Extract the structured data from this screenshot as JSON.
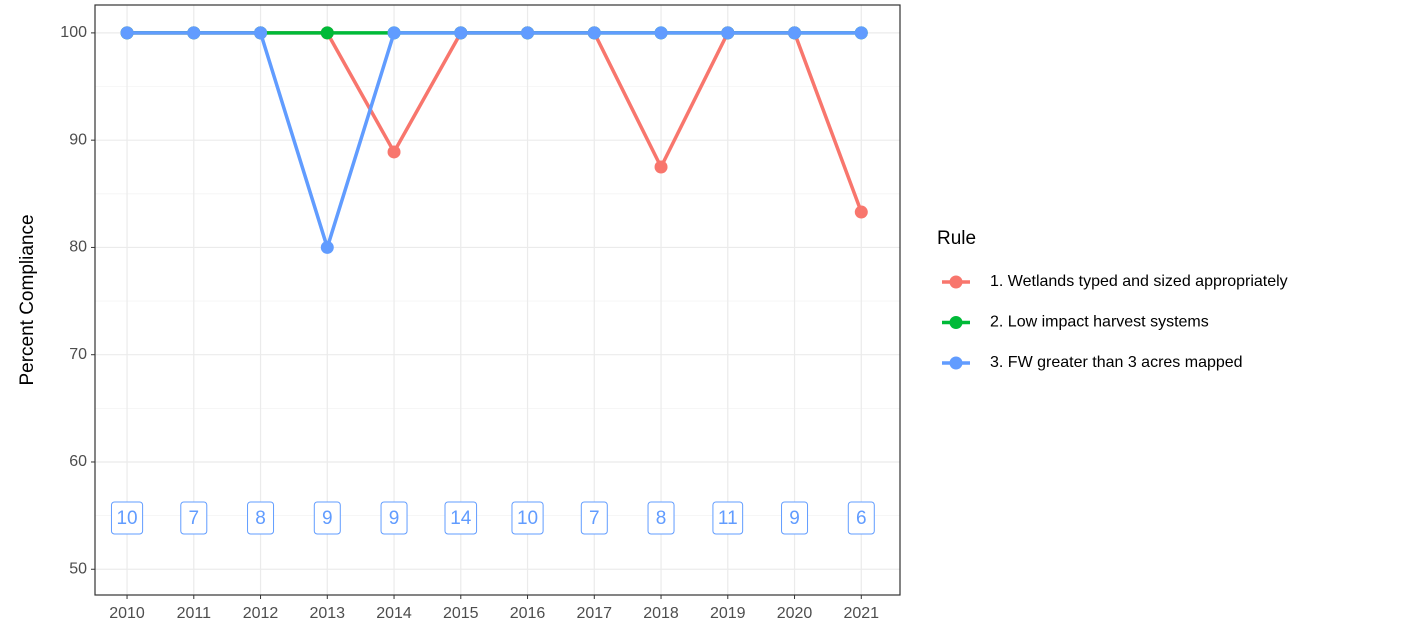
{
  "chart_data": {
    "type": "line",
    "y_label": "Percent Compliance",
    "x": [
      2010,
      2011,
      2012,
      2013,
      2014,
      2015,
      2016,
      2017,
      2018,
      2019,
      2020,
      2021
    ],
    "series": [
      {
        "name": "1. Wetlands typed and sized appropriately",
        "color": "#F8766D",
        "values": [
          100,
          100,
          100,
          100,
          88.9,
          100,
          100,
          100,
          87.5,
          100,
          100,
          83.3
        ]
      },
      {
        "name": "2. Low impact harvest systems",
        "color": "#00BA38",
        "values": [
          100,
          100,
          100,
          100,
          100,
          100,
          100,
          100,
          100,
          100,
          100,
          100
        ]
      },
      {
        "name": "3. FW greater than 3 acres mapped",
        "color": "#619CFF",
        "values": [
          100,
          100,
          100,
          80,
          100,
          100,
          100,
          100,
          100,
          100,
          100,
          100
        ]
      }
    ],
    "count_labels": [
      10,
      7,
      8,
      9,
      9,
      14,
      10,
      7,
      8,
      11,
      9,
      6
    ],
    "count_label_color": "#619CFF",
    "legend_title": "Rule",
    "legend_position": "right",
    "xlim": [
      2009.52,
      2021.58
    ],
    "xticks": [
      2010,
      2011,
      2012,
      2013,
      2014,
      2015,
      2016,
      2017,
      2018,
      2019,
      2020,
      2021
    ],
    "ylim": [
      47.6,
      102.6
    ],
    "yticks": [
      50,
      60,
      70,
      80,
      90,
      100
    ],
    "grid": true
  }
}
